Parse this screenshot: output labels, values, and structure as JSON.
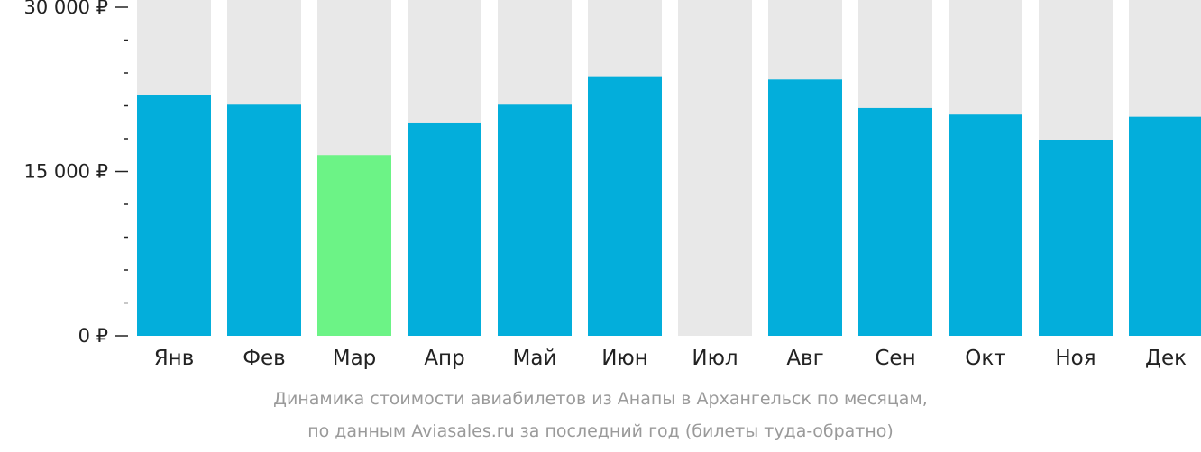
{
  "chart_data": {
    "type": "bar",
    "categories": [
      "Янв",
      "Фев",
      "Мар",
      "Апр",
      "Май",
      "Июн",
      "Июл",
      "Авг",
      "Сен",
      "Окт",
      "Ноя",
      "Дек"
    ],
    "values": [
      22000,
      21100,
      16500,
      19400,
      21100,
      23700,
      0,
      23400,
      20800,
      20200,
      17900,
      20000
    ],
    "highlight_index": 2,
    "ylim": [
      0,
      30000
    ],
    "ytick_labels": [
      {
        "value": 30000,
        "label": "30 000 ₽"
      },
      {
        "value": 15000,
        "label": "15 000 ₽"
      },
      {
        "value": 0,
        "label": "0 ₽"
      }
    ],
    "minor_tick_step": 3000,
    "colors": {
      "bar": "#03aedb",
      "highlight": "#6cf386",
      "background_bar": "#e8e8e8",
      "axis": "#222222"
    }
  },
  "caption": {
    "line1": "Динамика стоимости авиабилетов из Анапы в Архангельск по месяцам,",
    "line2": "по данным Aviasales.ru за последний год (билеты туда-обратно)"
  }
}
